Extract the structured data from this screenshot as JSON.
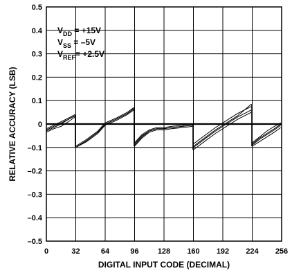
{
  "chart_data": {
    "type": "line",
    "xlabel": "DIGITAL INPUT CODE (DECIMAL)",
    "ylabel": "RELATIVE ACCURACY (LSB)",
    "xlim": [
      0,
      256
    ],
    "ylim": [
      -0.5,
      0.5
    ],
    "x_ticks": [
      0,
      32,
      64,
      96,
      128,
      160,
      192,
      224,
      256
    ],
    "x_tick_labels": [
      "0",
      "32",
      "64",
      "96",
      "128",
      "160",
      "192",
      "224",
      "256"
    ],
    "y_ticks": [
      0.5,
      0.4,
      0.3,
      0.2,
      0.1,
      0,
      -0.1,
      -0.2,
      -0.3,
      -0.4,
      -0.5
    ],
    "y_tick_labels": [
      "0.5",
      "0.4",
      "0.3",
      "0.2",
      "0.1",
      "0",
      "–0.1",
      "–0.2",
      "–0.3",
      "–0.4",
      "–0.5"
    ],
    "grid": true,
    "series": [
      {
        "segments": [
          {
            "x": [
              0,
              8,
              16,
              24,
              31
            ],
            "y": [
              -0.03,
              -0.015,
              0.0,
              0.02,
              0.035
            ]
          },
          {
            "x": [
              32,
              44,
              56,
              64,
              76,
              88,
              95
            ],
            "y": [
              -0.1,
              -0.07,
              -0.035,
              0.0,
              0.02,
              0.045,
              0.065
            ]
          },
          {
            "x": [
              96,
              104,
              112,
              120,
              128,
              136,
              148,
              159
            ],
            "y": [
              -0.09,
              -0.055,
              -0.03,
              -0.02,
              -0.02,
              -0.015,
              -0.01,
              -0.005
            ]
          },
          {
            "x": [
              160,
              172,
              184,
              196,
              208,
              223
            ],
            "y": [
              -0.1,
              -0.065,
              -0.03,
              0.0,
              0.03,
              0.06
            ]
          },
          {
            "x": [
              224,
              232,
              240,
              248,
              255
            ],
            "y": [
              -0.09,
              -0.065,
              -0.045,
              -0.025,
              -0.005
            ]
          }
        ]
      },
      {
        "segments": [
          {
            "x": [
              0,
              8,
              16,
              24,
              31
            ],
            "y": [
              -0.02,
              -0.005,
              0.01,
              0.025,
              0.04
            ]
          },
          {
            "x": [
              32,
              44,
              56,
              64,
              76,
              88,
              95
            ],
            "y": [
              -0.095,
              -0.065,
              -0.03,
              0.005,
              0.025,
              0.05,
              0.07
            ]
          },
          {
            "x": [
              96,
              104,
              112,
              120,
              128,
              136,
              148,
              159
            ],
            "y": [
              -0.08,
              -0.045,
              -0.025,
              -0.015,
              -0.015,
              -0.01,
              -0.005,
              0.0
            ]
          },
          {
            "x": [
              160,
              172,
              184,
              196,
              208,
              223
            ],
            "y": [
              -0.085,
              -0.05,
              -0.015,
              0.015,
              0.045,
              0.075
            ]
          },
          {
            "x": [
              224,
              232,
              240,
              248,
              255
            ],
            "y": [
              -0.08,
              -0.055,
              -0.03,
              -0.01,
              0.005
            ]
          }
        ]
      },
      {
        "segments": [
          {
            "x": [
              0,
              8,
              16,
              24,
              31
            ],
            "y": [
              -0.035,
              -0.02,
              -0.01,
              0.01,
              0.03
            ]
          },
          {
            "x": [
              32,
              44,
              56,
              64,
              76,
              88,
              95
            ],
            "y": [
              -0.1,
              -0.075,
              -0.04,
              -0.005,
              0.015,
              0.04,
              0.06
            ]
          },
          {
            "x": [
              96,
              104,
              112,
              120,
              128,
              136,
              148,
              159
            ],
            "y": [
              -0.095,
              -0.06,
              -0.035,
              -0.025,
              -0.025,
              -0.02,
              -0.015,
              -0.01
            ]
          },
          {
            "x": [
              160,
              172,
              184,
              196,
              208,
              223
            ],
            "y": [
              -0.11,
              -0.075,
              -0.04,
              -0.01,
              0.02,
              0.05
            ]
          },
          {
            "x": [
              224,
              232,
              240,
              248,
              255
            ],
            "y": [
              -0.095,
              -0.075,
              -0.055,
              -0.035,
              -0.015
            ]
          }
        ]
      },
      {
        "segments": [
          {
            "x": [
              0,
              8,
              16,
              24,
              31
            ],
            "y": [
              -0.025,
              -0.01,
              0.005,
              0.02,
              0.035
            ]
          },
          {
            "x": [
              32,
              44,
              56,
              64,
              76,
              88,
              95
            ],
            "y": [
              -0.1,
              -0.07,
              -0.035,
              0.0,
              0.02,
              0.045,
              0.065
            ]
          },
          {
            "x": [
              96,
              104,
              112,
              120,
              128,
              136,
              148,
              159
            ],
            "y": [
              -0.085,
              -0.05,
              -0.03,
              -0.02,
              -0.02,
              -0.015,
              -0.01,
              -0.005
            ]
          },
          {
            "x": [
              160,
              172,
              184,
              196,
              208,
              223
            ],
            "y": [
              -0.095,
              -0.06,
              -0.025,
              0.005,
              0.035,
              0.085
            ]
          },
          {
            "x": [
              224,
              232,
              240,
              248,
              255
            ],
            "y": [
              -0.085,
              -0.06,
              -0.04,
              -0.02,
              0.0
            ]
          }
        ]
      }
    ],
    "annotations": [
      {
        "main": "V",
        "sub": "DD",
        "rest": " = +15V"
      },
      {
        "main": "V",
        "sub": "SS",
        "rest": " = –5V"
      },
      {
        "main": "V",
        "sub": "REF",
        "rest": "= +2.5V"
      }
    ]
  }
}
